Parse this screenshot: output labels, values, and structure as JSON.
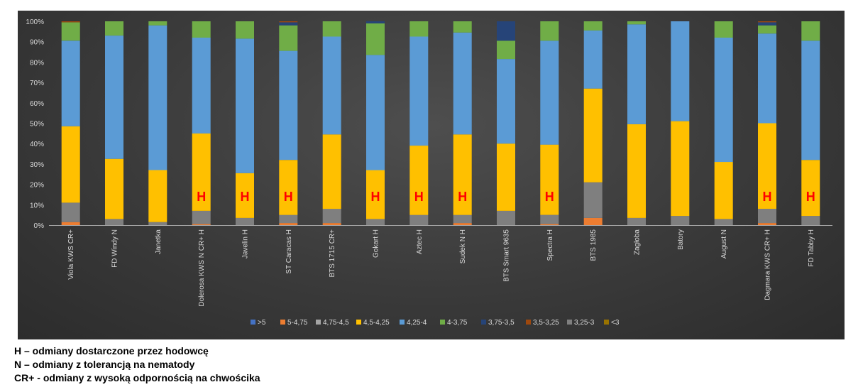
{
  "chart_data": {
    "type": "bar",
    "stacked": true,
    "percent": true,
    "categories": [
      "Viola KWS CR+",
      "FD Windy N",
      "Janetka",
      "Dolerosa KWS N CR+ H",
      "Javelin H",
      "ST Caracas  H",
      "BTS 1715 CR+",
      "Gokart  H",
      "Aztec  H",
      "Sudek  N H",
      "BTS Smart 9635",
      "Spectra  H",
      "BTS 1985",
      "Zagłoba",
      "Batory",
      "August N",
      "Dagmara KWS CR+ H",
      "FD Tabby  H"
    ],
    "bar_marks": [
      "",
      "",
      "",
      "H",
      "H",
      "H",
      "",
      "H",
      "H",
      "H",
      "",
      "H",
      "",
      "",
      "",
      "",
      "H",
      "H"
    ],
    "ylim": [
      0,
      100
    ],
    "yticks": [
      "0%",
      "10%",
      "20%",
      "30%",
      "40%",
      "50%",
      "60%",
      "70%",
      "80%",
      "90%",
      "100%"
    ],
    "grid": false,
    "legend_position": "bottom",
    "stack_order": [
      "5-4,75",
      "3,25-3",
      "4,75-4,5",
      "4,5-4,25",
      "4,25-4",
      "4-3,75",
      "3,75-3,5",
      "3,5-3,25",
      "<3",
      ">5"
    ],
    "series": [
      {
        "name": ">5",
        "color": "#4472c4",
        "values": [
          0,
          0,
          0,
          0,
          0,
          0,
          0,
          0,
          0,
          0,
          0,
          0,
          0,
          0,
          0,
          0,
          0,
          0
        ]
      },
      {
        "name": "5-4,75",
        "color": "#ed7d31",
        "values": [
          1.5,
          0,
          0,
          0.5,
          0,
          1,
          1,
          0,
          0,
          1,
          0,
          0.5,
          3.5,
          0,
          0,
          0,
          1,
          0
        ]
      },
      {
        "name": "4,75-4,5",
        "color": "#a5a5a5",
        "values": [
          0,
          0,
          0,
          0,
          0,
          0,
          0,
          0,
          0,
          0,
          0,
          0,
          0,
          0,
          0,
          0,
          0,
          0
        ]
      },
      {
        "name": "4,5-4,25",
        "color": "#ffc000",
        "values": [
          37.5,
          29.5,
          25.5,
          38,
          22,
          27,
          36.5,
          24,
          34,
          39.5,
          33,
          34.5,
          46,
          46,
          46.5,
          28,
          42,
          27.5
        ]
      },
      {
        "name": "4,25-4",
        "color": "#5b9bd5",
        "values": [
          42,
          60.5,
          71,
          47,
          66,
          53.5,
          48,
          56.5,
          53.5,
          50,
          41.5,
          51,
          28.5,
          49,
          49,
          61,
          44,
          58.5
        ]
      },
      {
        "name": "4-3,75",
        "color": "#70ad47",
        "values": [
          9,
          7,
          2,
          8,
          8.5,
          12.5,
          7.5,
          15.5,
          7.5,
          5.5,
          9,
          9.5,
          4.5,
          1.5,
          0,
          8,
          4,
          9.5
        ]
      },
      {
        "name": "3,75-3,5",
        "color": "#264478",
        "values": [
          0,
          0,
          0,
          0,
          0,
          1.5,
          0,
          1,
          0,
          0,
          9.5,
          0,
          0,
          0,
          0,
          0,
          1.5,
          0
        ]
      },
      {
        "name": "3,5-3,25",
        "color": "#9e480e",
        "values": [
          0.5,
          0,
          0,
          0,
          0,
          0.5,
          0,
          0,
          0,
          0,
          0,
          0,
          0,
          0,
          0,
          0,
          0.5,
          0
        ]
      },
      {
        "name": "3,25-3",
        "color": "#7f7f7f",
        "values": [
          9.5,
          3,
          1.5,
          6.5,
          3.5,
          4,
          7,
          3,
          5,
          4,
          7,
          4.5,
          17.5,
          3.5,
          4.5,
          3,
          7,
          4.5
        ]
      },
      {
        "name": "<3",
        "color": "#997300",
        "values": [
          0,
          0,
          0,
          0,
          0,
          0,
          0,
          0,
          0,
          0,
          0,
          0,
          0,
          0,
          0,
          0,
          0,
          0
        ]
      }
    ]
  },
  "notes": [
    "H – odmiany dostarczone przez hodowcę",
    "N – odmiany z tolerancją na nematody",
    "CR+ - odmiany z wysoką odpornością na chwościka"
  ],
  "colors": {
    "mark": "#ff0000",
    "axis_text": "#d9d9d9",
    "panel": "#3a3a3a"
  }
}
